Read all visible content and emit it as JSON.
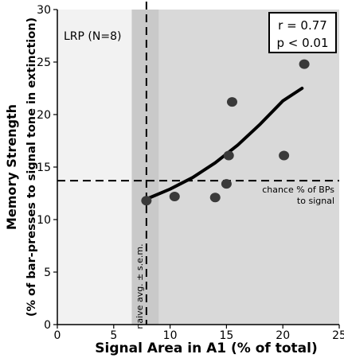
{
  "chart_data": {
    "type": "scatter",
    "title": "",
    "panel_label": "LRP (N=8)",
    "xlabel": "Signal Area in A1 (% of total)",
    "ylabel_line1": "Memory Strength",
    "ylabel_line2": "(% of bar-presses to signal tone in extinction)",
    "xlim": [
      0,
      25
    ],
    "ylim": [
      0,
      30
    ],
    "x_ticks": [
      0,
      5,
      10,
      15,
      20,
      25
    ],
    "y_ticks": [
      0,
      5,
      10,
      15,
      20,
      25,
      30
    ],
    "x_tick_labels": [
      "0",
      "5",
      "10",
      "15",
      "20",
      "25"
    ],
    "y_tick_labels": [
      "0",
      "5",
      "10",
      "15",
      "20",
      "25",
      "30"
    ],
    "points": [
      {
        "x": 7.9,
        "y": 11.8
      },
      {
        "x": 10.4,
        "y": 12.2
      },
      {
        "x": 14.0,
        "y": 12.1
      },
      {
        "x": 15.0,
        "y": 13.4
      },
      {
        "x": 15.2,
        "y": 16.1
      },
      {
        "x": 15.5,
        "y": 21.2
      },
      {
        "x": 20.1,
        "y": 16.1
      },
      {
        "x": 21.9,
        "y": 24.8
      }
    ],
    "fit_curve": {
      "x": [
        8.0,
        10,
        12,
        14,
        16,
        18,
        20,
        21.7
      ],
      "y": [
        12.0,
        12.9,
        14.0,
        15.4,
        17.1,
        19.1,
        21.3,
        22.5
      ]
    },
    "naive_avg": {
      "x": 7.9,
      "sem_low": 6.6,
      "sem_high": 9.0,
      "label": "naive avg. ± s.e.m."
    },
    "chance_level": {
      "y": 13.7,
      "label_line1": "chance % of BPs",
      "label_line2": "to signal"
    },
    "stats": {
      "r": "r = 0.77",
      "p": "p < 0.01"
    },
    "colors": {
      "left_region": "#f2f2f2",
      "sem_band": "#c9c9c9",
      "right_region": "#d9d9d9",
      "points": "#3a3a3a",
      "curve": "#000000"
    }
  }
}
